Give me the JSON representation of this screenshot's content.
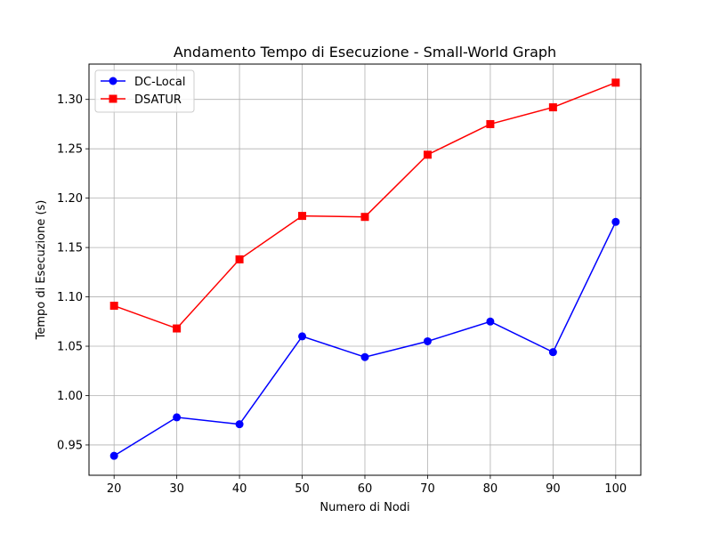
{
  "chart_data": {
    "type": "line",
    "title": "Andamento Tempo di Esecuzione - Small-World Graph",
    "xlabel": "Numero di Nodi",
    "ylabel": "Tempo di Esecuzione (s)",
    "x": [
      20,
      30,
      40,
      50,
      60,
      70,
      80,
      90,
      100
    ],
    "xlim": [
      16,
      104
    ],
    "ylim": [
      0.9193,
      1.3358
    ],
    "xticks": [
      "20",
      "30",
      "40",
      "50",
      "60",
      "70",
      "80",
      "90",
      "100"
    ],
    "yticks": [
      "0.95",
      "1.00",
      "1.05",
      "1.10",
      "1.15",
      "1.20",
      "1.25",
      "1.30"
    ],
    "grid": true,
    "legend_position": "top-left",
    "series": [
      {
        "name": "DC-Local",
        "color": "#0000ff",
        "marker": "circle",
        "values": [
          0.939,
          0.978,
          0.971,
          1.06,
          1.039,
          1.055,
          1.075,
          1.044,
          1.176
        ]
      },
      {
        "name": "DSATUR",
        "color": "#ff0000",
        "marker": "square",
        "values": [
          1.091,
          1.068,
          1.138,
          1.182,
          1.181,
          1.244,
          1.275,
          1.292,
          1.317
        ]
      }
    ]
  }
}
